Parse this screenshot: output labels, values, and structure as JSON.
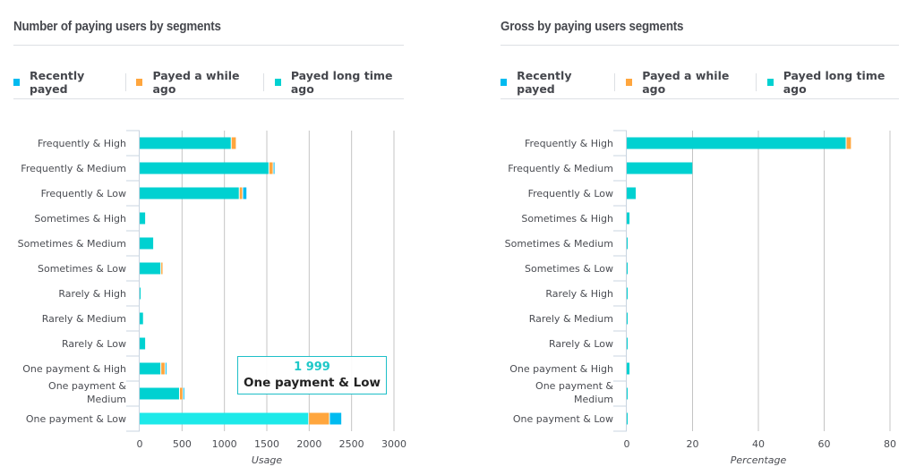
{
  "colors": {
    "recently": "#00bbf0",
    "while": "#ffa63e",
    "long": "#00d1d1",
    "long_highlight": "#1de9e9",
    "grid": "#c4c4c4",
    "axis": "#c8d4e0"
  },
  "legend": [
    {
      "label": "Recently payed",
      "color": "#00bbf0"
    },
    {
      "label": "Payed a while ago",
      "color": "#ffa63e"
    },
    {
      "label": "Payed long time ago",
      "color": "#00d1d1"
    }
  ],
  "chart_data": [
    {
      "type": "bar",
      "orientation": "horizontal",
      "stacked": true,
      "title": "Number of paying users by segments",
      "xlabel": "Usage",
      "ylabel": "",
      "xlim": [
        0,
        3000
      ],
      "xticks": [
        "0",
        "500",
        "1000",
        "1500",
        "2000",
        "2500",
        "3000"
      ],
      "grid": true,
      "legend_position": "top",
      "categories": [
        "Frequently & High",
        "Frequently & Medium",
        "Frequently & Low",
        "Sometimes & High",
        "Sometimes & Medium",
        "Sometimes & Low",
        "Rarely & High",
        "Rarely & Medium",
        "Rarely & Low",
        "One payment & High",
        "One payment & Medium",
        "One payment & Low"
      ],
      "series": [
        {
          "name": "Payed long time ago",
          "values": [
            1085,
            1530,
            1180,
            75,
            170,
            255,
            10,
            50,
            75,
            255,
            475,
            1999
          ]
        },
        {
          "name": "Payed a while ago",
          "values": [
            60,
            50,
            40,
            0,
            0,
            25,
            0,
            0,
            0,
            50,
            40,
            245
          ]
        },
        {
          "name": "Recently payed",
          "values": [
            0,
            20,
            50,
            0,
            0,
            0,
            0,
            0,
            0,
            15,
            20,
            145
          ]
        }
      ],
      "highlight": {
        "category_index": 11,
        "series": "Payed long time ago"
      },
      "tooltip": {
        "value": "1 999",
        "label": "One payment & Low"
      }
    },
    {
      "type": "bar",
      "orientation": "horizontal",
      "stacked": true,
      "title": "Gross by paying users segments",
      "xlabel": "Percentage",
      "ylabel": "",
      "xlim": [
        0,
        80
      ],
      "xticks": [
        "0",
        "20",
        "40",
        "60",
        "80"
      ],
      "grid": true,
      "legend_position": "top",
      "categories": [
        "Frequently & High",
        "Frequently & Medium",
        "Frequently & Low",
        "Sometimes & High",
        "Sometimes & Medium",
        "Sometimes & Low",
        "Rarely & High",
        "Rarely & Medium",
        "Rarely & Low",
        "One payment & High",
        "One payment & Medium",
        "One payment & Low"
      ],
      "series": [
        {
          "name": "Payed long time ago",
          "values": [
            66.8,
            20.2,
            3.0,
            1.1,
            0.5,
            0.1,
            0.05,
            0.1,
            0.1,
            1.1,
            0.3,
            0.3
          ]
        },
        {
          "name": "Payed a while ago",
          "values": [
            1.6,
            0,
            0,
            0,
            0,
            0,
            0,
            0,
            0,
            0,
            0,
            0
          ]
        },
        {
          "name": "Recently payed",
          "values": [
            0,
            0,
            0,
            0,
            0,
            0,
            0,
            0,
            0,
            0,
            0,
            0
          ]
        }
      ]
    }
  ]
}
